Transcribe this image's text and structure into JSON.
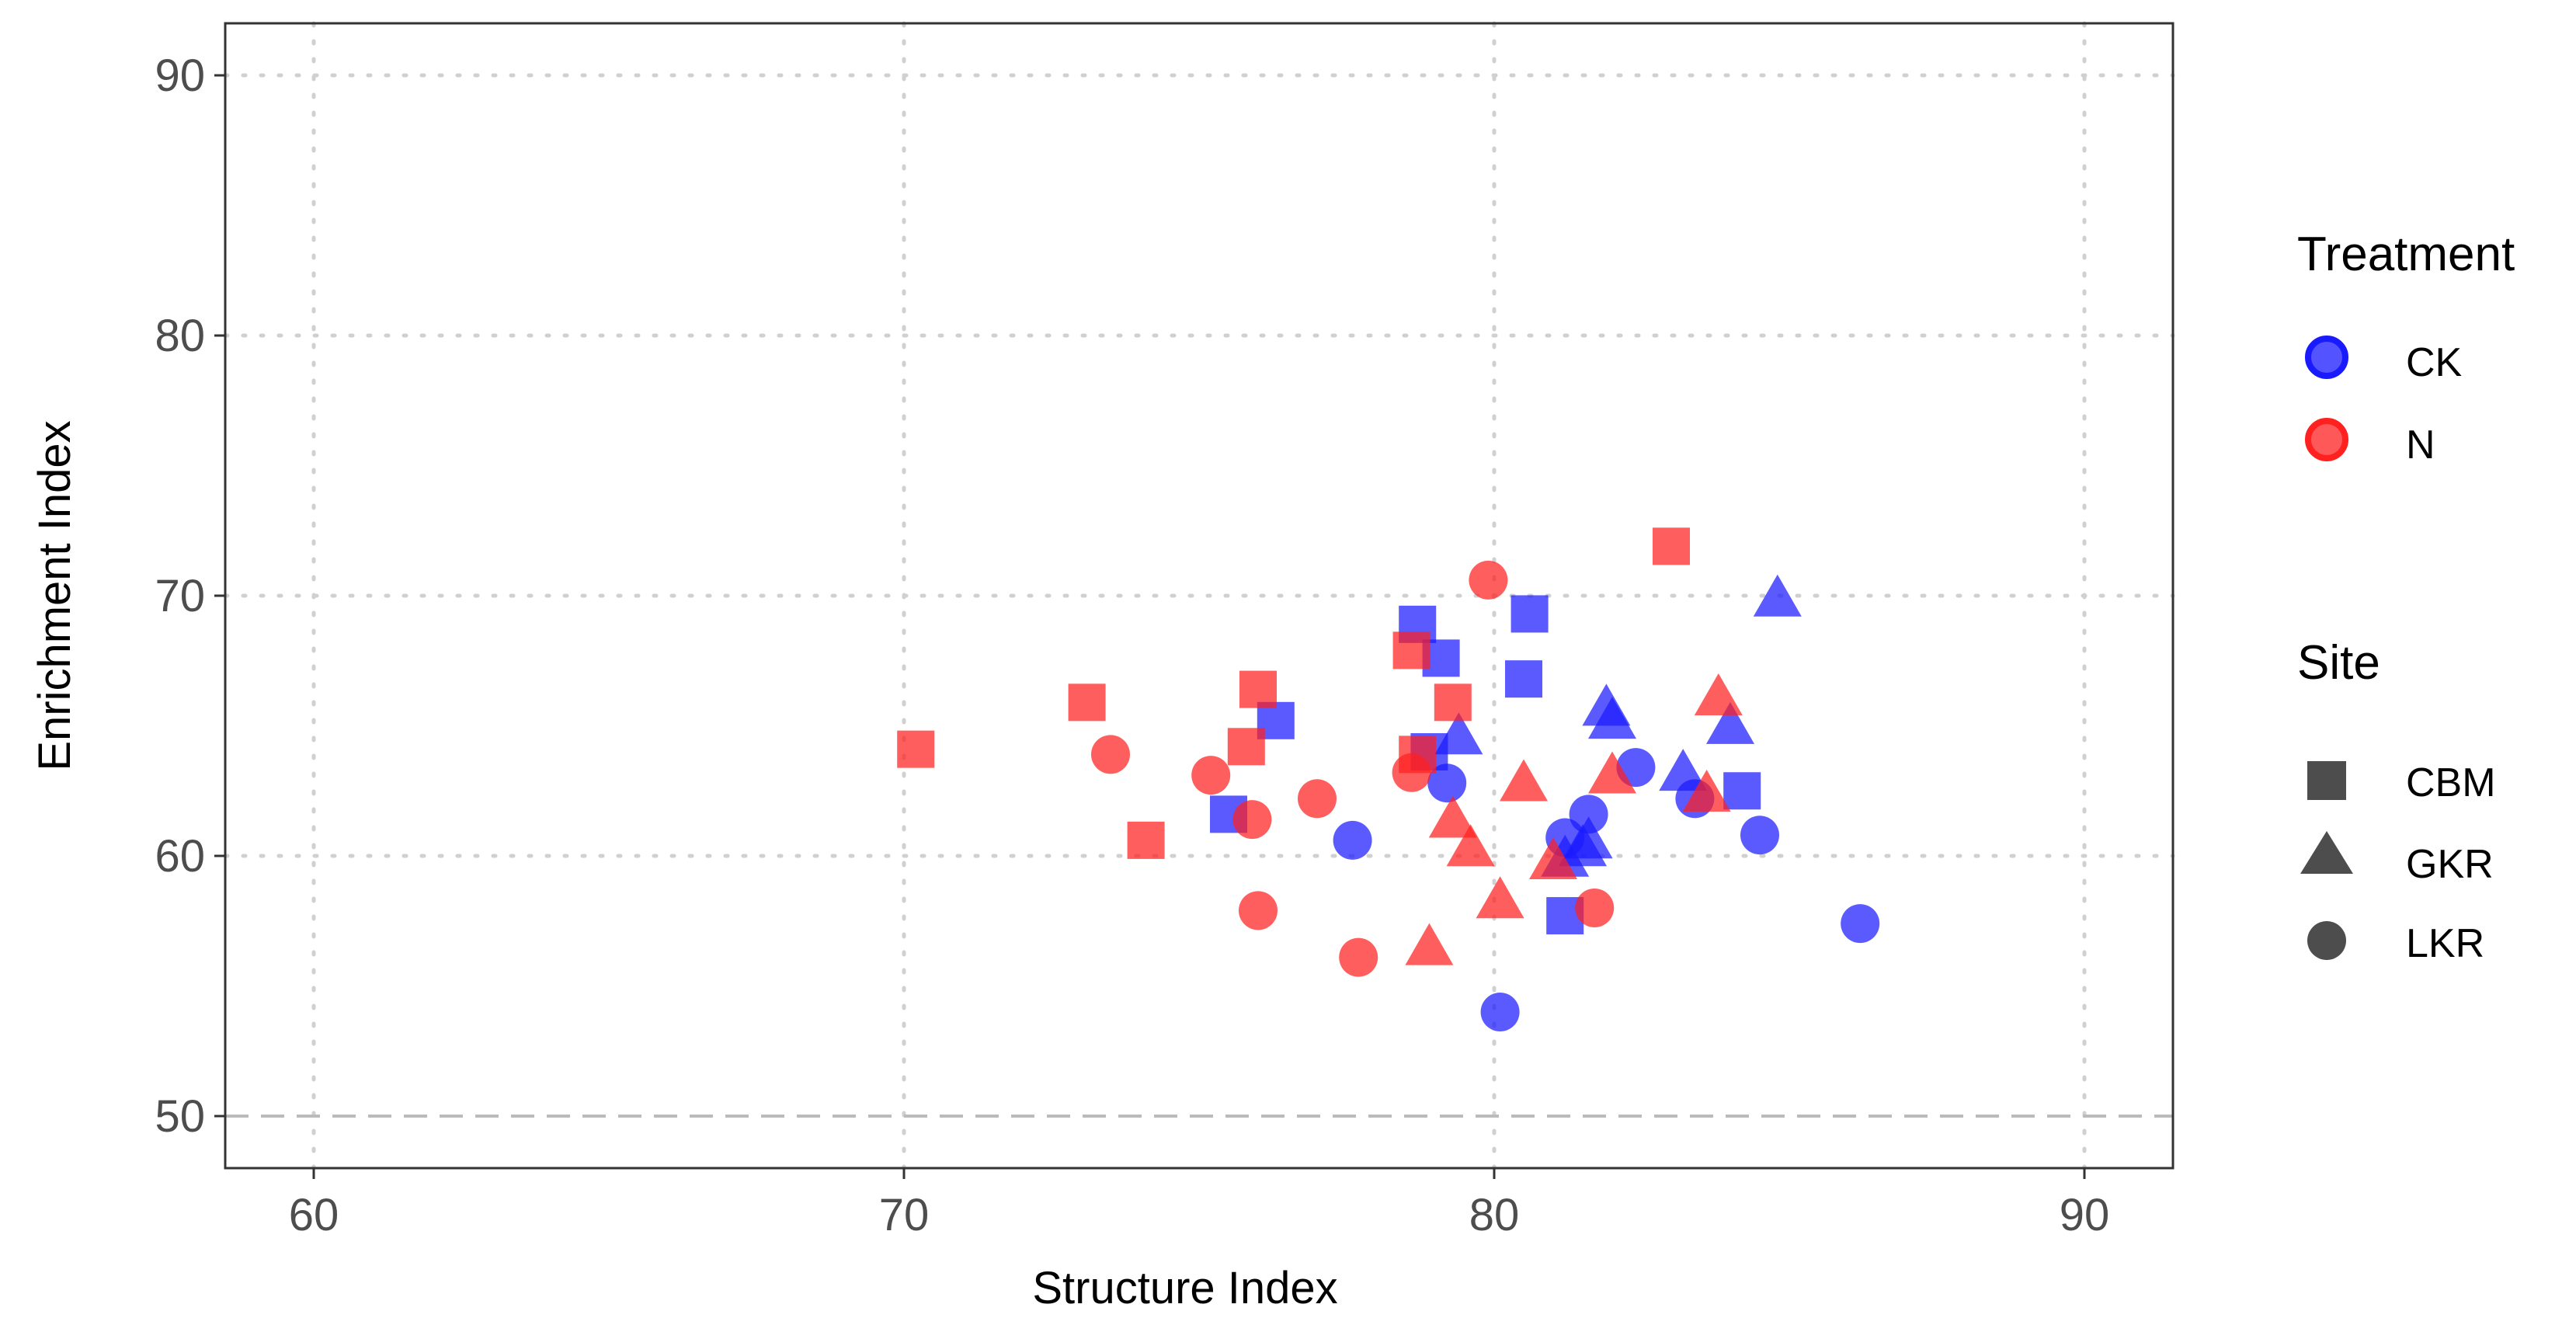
{
  "chart_data": {
    "type": "scatter",
    "xlabel": "Structure Index",
    "ylabel": "Enrichment Index",
    "xlim": [
      58.5,
      91.5
    ],
    "ylim": [
      48,
      92
    ],
    "x_ticks": [
      60,
      70,
      80,
      90
    ],
    "y_ticks": [
      50,
      60,
      70,
      80,
      90
    ],
    "grid": true,
    "grid_style": "dotted",
    "reference_line": {
      "y": 50,
      "style": "dashed"
    },
    "legend_position": "right",
    "legends": {
      "treatment": {
        "title": "Treatment",
        "items": [
          {
            "label": "CK",
            "color": "#1a1aff"
          },
          {
            "label": "N",
            "color": "#ff2020"
          }
        ]
      },
      "site": {
        "title": "Site",
        "items": [
          {
            "label": "CBM",
            "shape": "square"
          },
          {
            "label": "GKR",
            "shape": "triangle"
          },
          {
            "label": "LKR",
            "shape": "circle"
          }
        ]
      }
    },
    "series": [
      {
        "treatment": "CK",
        "site": "CBM",
        "points": [
          [
            78.7,
            68.9
          ],
          [
            79.1,
            67.6
          ],
          [
            80.6,
            69.3
          ],
          [
            80.5,
            66.8
          ],
          [
            76.3,
            65.2
          ],
          [
            75.5,
            61.6
          ],
          [
            78.9,
            64.0
          ],
          [
            81.2,
            57.7
          ],
          [
            84.2,
            62.5
          ]
        ]
      },
      {
        "treatment": "CK",
        "site": "GKR",
        "points": [
          [
            84.8,
            69.8
          ],
          [
            81.9,
            65.6
          ],
          [
            82.0,
            65.1
          ],
          [
            79.4,
            64.5
          ],
          [
            83.2,
            63.1
          ],
          [
            84.0,
            64.9
          ],
          [
            81.6,
            60.5
          ],
          [
            81.2,
            59.8
          ],
          [
            81.5,
            60.2
          ]
        ]
      },
      {
        "treatment": "CK",
        "site": "LKR",
        "points": [
          [
            79.2,
            62.8
          ],
          [
            77.6,
            60.6
          ],
          [
            81.2,
            60.7
          ],
          [
            81.6,
            61.6
          ],
          [
            82.4,
            63.4
          ],
          [
            83.4,
            62.2
          ],
          [
            84.5,
            60.8
          ],
          [
            86.2,
            57.4
          ],
          [
            80.1,
            54.0
          ]
        ]
      },
      {
        "treatment": "N",
        "site": "CBM",
        "points": [
          [
            70.2,
            64.1
          ],
          [
            73.1,
            65.9
          ],
          [
            74.1,
            60.6
          ],
          [
            76.0,
            66.4
          ],
          [
            75.8,
            64.2
          ],
          [
            78.6,
            67.9
          ],
          [
            79.3,
            65.9
          ],
          [
            78.7,
            63.9
          ],
          [
            83.0,
            71.9
          ]
        ]
      },
      {
        "treatment": "N",
        "site": "GKR",
        "points": [
          [
            80.5,
            62.7
          ],
          [
            79.3,
            61.3
          ],
          [
            79.6,
            60.2
          ],
          [
            81.0,
            59.7
          ],
          [
            80.1,
            58.2
          ],
          [
            78.9,
            56.4
          ],
          [
            82.0,
            63.0
          ],
          [
            83.6,
            62.3
          ],
          [
            83.8,
            66.0
          ]
        ]
      },
      {
        "treatment": "N",
        "site": "LKR",
        "points": [
          [
            79.9,
            70.6
          ],
          [
            73.5,
            63.9
          ],
          [
            75.2,
            63.1
          ],
          [
            75.9,
            61.4
          ],
          [
            77.0,
            62.2
          ],
          [
            76.0,
            57.9
          ],
          [
            77.7,
            56.1
          ],
          [
            81.7,
            58.0
          ],
          [
            78.6,
            63.2
          ]
        ]
      }
    ]
  }
}
